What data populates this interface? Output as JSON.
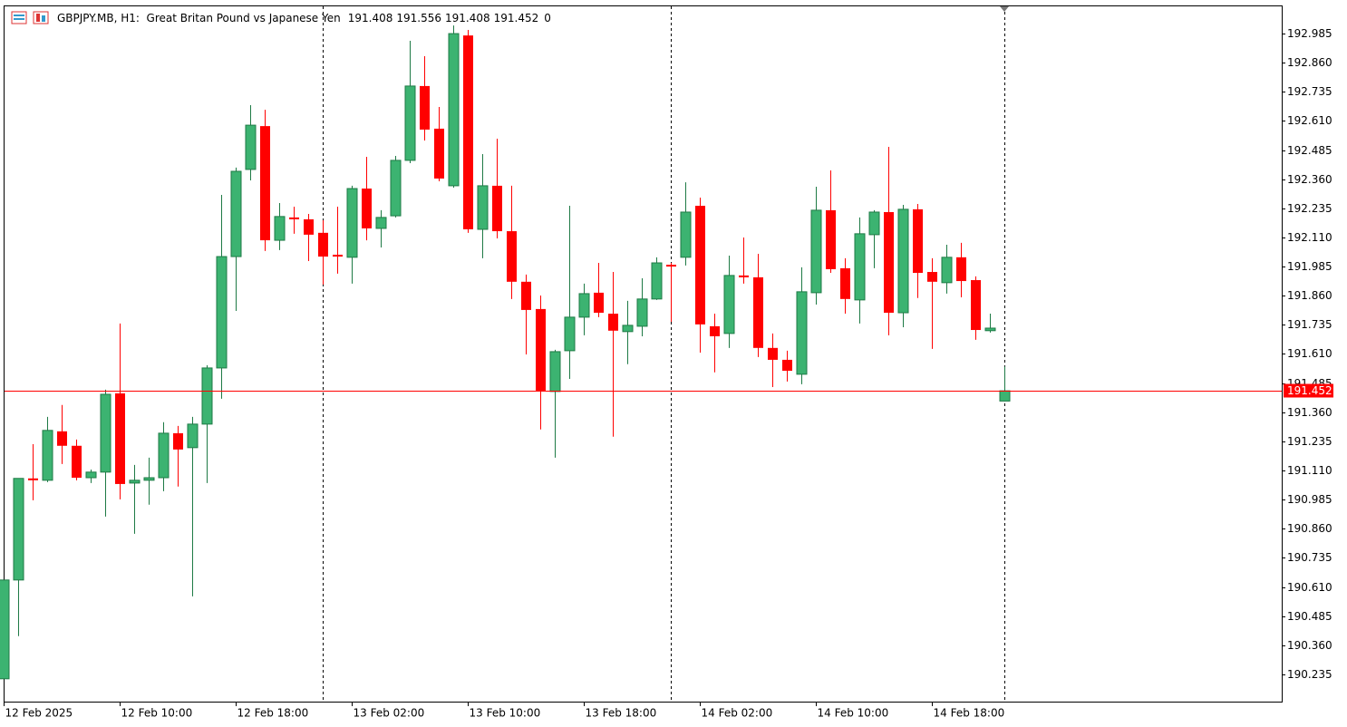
{
  "chart_data": {
    "type": "candlestick",
    "title": "GBPJPY.MB, H1:  Great Britan Pound vs Japanese Yen",
    "volume": 0,
    "up_color": "#3cb371",
    "down_color": "#ff0000",
    "current_price_color": "#ff0000",
    "categories": [
      "12 Feb 2025",
      null,
      null,
      null,
      null,
      null,
      null,
      null,
      "12 Feb 10:00",
      null,
      null,
      null,
      null,
      null,
      null,
      null,
      "12 Feb 18:00",
      null,
      null,
      null,
      null,
      null,
      null,
      null,
      "13 Feb 02:00",
      null,
      null,
      null,
      null,
      null,
      null,
      null,
      "13 Feb 10:00",
      null,
      null,
      null,
      null,
      null,
      null,
      null,
      "13 Feb 18:00",
      null,
      null,
      null,
      null,
      null,
      null,
      null,
      "14 Feb 02:00",
      null,
      null,
      null,
      null,
      null,
      null,
      null,
      "14 Feb 10:00",
      null,
      null,
      null,
      null,
      null,
      null,
      null,
      "14 Feb 18:00",
      null,
      null,
      null,
      null,
      null
    ],
    "open": [
      190.216,
      190.64,
      191.076,
      191.068,
      191.278,
      191.216,
      191.079,
      191.103,
      191.441,
      191.056,
      191.068,
      191.079,
      191.27,
      191.208,
      191.309,
      191.55,
      192.028,
      192.402,
      192.588,
      192.098,
      192.196,
      192.188,
      192.13,
      192.036,
      192.025,
      192.32,
      192.149,
      192.203,
      192.441,
      192.76,
      192.577,
      192.332,
      192.977,
      192.145,
      192.332,
      192.137,
      191.92,
      191.803,
      191.449,
      191.624,
      191.768,
      191.873,
      191.783,
      191.706,
      191.729,
      191.846,
      191.993,
      192.025,
      192.246,
      191.729,
      191.698,
      191.947,
      191.939,
      191.636,
      191.585,
      191.523,
      191.873,
      192.227,
      191.978,
      191.842,
      192.122,
      192.219,
      191.787,
      192.231,
      191.962,
      191.916,
      192.025,
      191.927,
      191.71,
      191.408
    ],
    "high": [
      190.64,
      191.076,
      191.223,
      191.34,
      191.391,
      191.243,
      191.114,
      191.457,
      191.741,
      191.134,
      191.165,
      191.317,
      191.301,
      191.34,
      191.562,
      192.293,
      192.41,
      192.678,
      192.658,
      192.258,
      192.242,
      192.211,
      192.184,
      192.242,
      192.332,
      192.456,
      192.227,
      192.46,
      192.954,
      192.888,
      192.67,
      193.02,
      193.001,
      192.468,
      192.534,
      192.332,
      191.951,
      191.861,
      191.628,
      192.246,
      191.912,
      192.001,
      191.962,
      191.838,
      191.935,
      192.025,
      192.001,
      192.347,
      192.281,
      191.783,
      192.032,
      192.11,
      192.04,
      191.698,
      191.624,
      191.982,
      192.328,
      192.398,
      192.021,
      192.196,
      192.227,
      192.499,
      192.25,
      192.254,
      192.021,
      192.079,
      192.087,
      191.943,
      191.783,
      191.556
    ],
    "low": [
      190.216,
      190.399,
      190.982,
      191.06,
      191.138,
      191.068,
      191.056,
      190.912,
      190.986,
      190.838,
      190.963,
      191.021,
      191.041,
      190.57,
      191.056,
      191.418,
      191.795,
      192.355,
      192.052,
      192.056,
      192.126,
      192.009,
      191.908,
      191.955,
      191.912,
      192.098,
      192.067,
      192.196,
      192.429,
      192.526,
      192.351,
      192.324,
      192.13,
      192.021,
      192.106,
      191.846,
      191.608,
      191.286,
      191.165,
      191.503,
      191.69,
      191.768,
      191.255,
      191.566,
      191.686,
      191.842,
      191.748,
      191.99,
      191.616,
      191.531,
      191.636,
      191.912,
      191.597,
      191.468,
      191.492,
      191.48,
      191.822,
      191.958,
      191.783,
      191.741,
      191.978,
      191.69,
      191.725,
      191.85,
      191.632,
      191.869,
      191.853,
      191.671,
      191.702,
      191.408
    ],
    "close": [
      190.64,
      191.076,
      191.068,
      191.282,
      191.216,
      191.079,
      191.103,
      191.437,
      191.052,
      191.068,
      191.079,
      191.27,
      191.2,
      191.309,
      191.55,
      192.028,
      192.394,
      192.592,
      192.098,
      192.2,
      192.188,
      192.122,
      192.028,
      192.028,
      192.32,
      192.149,
      192.196,
      192.441,
      192.76,
      192.573,
      192.363,
      192.985,
      192.145,
      192.332,
      192.137,
      191.92,
      191.799,
      191.449,
      191.62,
      191.768,
      191.869,
      191.787,
      191.71,
      191.733,
      191.846,
      192.001,
      191.99,
      192.219,
      191.737,
      191.686,
      191.947,
      191.939,
      191.636,
      191.585,
      191.538,
      191.877,
      192.227,
      191.974,
      191.846,
      192.126,
      192.219,
      191.787,
      192.231,
      191.958,
      191.92,
      192.025,
      191.923,
      191.713,
      191.721,
      191.452
    ],
    "ylim": [
      190.118,
      193.102
    ],
    "yticks": [
      192.985,
      {
        "value": 192.86,
        "label": "192.860"
      },
      192.735,
      {
        "value": 192.61,
        "label": "192.610"
      },
      192.485,
      {
        "value": 192.36,
        "label": "192.360"
      },
      192.235,
      {
        "value": 192.11,
        "label": "192.110"
      },
      191.985,
      {
        "value": 191.86,
        "label": "191.860"
      },
      191.735,
      {
        "value": 191.61,
        "label": "191.610"
      },
      191.485,
      {
        "value": 191.36,
        "label": "191.360"
      },
      191.235,
      {
        "value": 191.11,
        "label": "191.110"
      },
      190.985,
      {
        "value": 190.86,
        "label": "190.860"
      },
      190.735,
      {
        "value": 190.61,
        "label": "190.610"
      },
      190.485,
      {
        "value": 190.36,
        "label": "190.360"
      },
      190.235
    ]
  }
}
